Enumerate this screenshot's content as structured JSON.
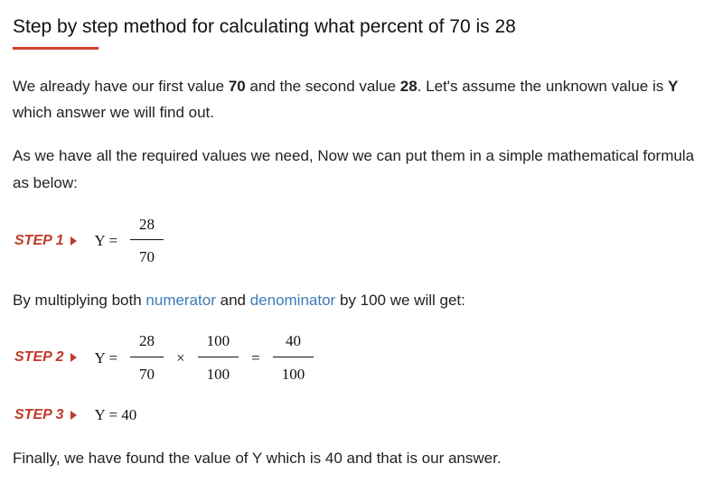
{
  "title": "Step by step method for calculating what percent of 70 is 28",
  "underline_color": "#d43e2a",
  "step_label_color": "#c1392b",
  "link_color": "#3b7bb8",
  "value_a": "70",
  "value_b": "28",
  "unknown": "Y",
  "para1_prefix": "We already have our first value ",
  "para1_mid1": " and the second value ",
  "para1_mid2": ". Let's assume the unknown value is ",
  "para1_suffix": " which answer we will find out.",
  "para2": "As we have all the required values we need, Now we can put them in a simple mathematical formula as below:",
  "para3_prefix": "By multiplying both ",
  "link_numerator": "numerator",
  "para3_mid": " and ",
  "link_denominator": "denominator",
  "para3_suffix": " by 100 we will get:",
  "para4": "Finally, we have found the value of Y which is 40 and that is our answer.",
  "steps": {
    "s1": {
      "label": "STEP 1",
      "y_equals": "Y =",
      "frac1_num": "28",
      "frac1_den": "70"
    },
    "s2": {
      "label": "STEP 2",
      "y_equals": "Y =",
      "frac1_num": "28",
      "frac1_den": "70",
      "times": "×",
      "frac2_num": "100",
      "frac2_den": "100",
      "equals": "=",
      "frac3_num": "40",
      "frac3_den": "100"
    },
    "s3": {
      "label": "STEP 3",
      "eq": "Y = 40"
    }
  }
}
